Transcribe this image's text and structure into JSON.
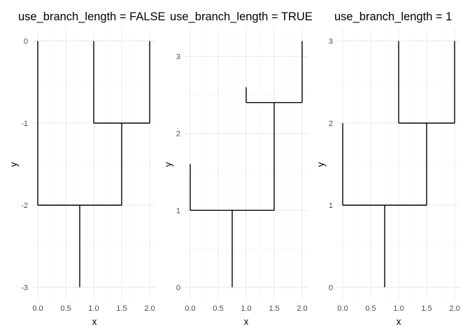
{
  "chart_data": [
    {
      "type": "dendrogram",
      "title": "use_branch_length = FALSE",
      "xlabel": "x",
      "ylabel": "y",
      "xlim": [
        -0.1,
        2.1
      ],
      "ylim": [
        -3.15,
        0.15
      ],
      "xticks": [
        0.0,
        0.5,
        1.0,
        1.5,
        2.0
      ],
      "xtick_labels": [
        "0.0",
        "0.5",
        "1.0",
        "1.5",
        "2.0"
      ],
      "yticks": [
        -3,
        -2,
        -1,
        0
      ],
      "ytick_labels": [
        "-3",
        "-2",
        "-1",
        "0"
      ],
      "grid": true,
      "segments": [
        {
          "x": [
            0.75,
            0.75
          ],
          "y": [
            -3,
            -2
          ]
        },
        {
          "x": [
            0.0,
            1.5
          ],
          "y": [
            -2,
            -2
          ]
        },
        {
          "x": [
            0.0,
            0.0
          ],
          "y": [
            -2,
            0
          ]
        },
        {
          "x": [
            1.5,
            1.5
          ],
          "y": [
            -2,
            -1
          ]
        },
        {
          "x": [
            1.0,
            2.0
          ],
          "y": [
            -1,
            -1
          ]
        },
        {
          "x": [
            1.0,
            1.0
          ],
          "y": [
            -1,
            0
          ]
        },
        {
          "x": [
            2.0,
            2.0
          ],
          "y": [
            -1,
            0
          ]
        }
      ]
    },
    {
      "type": "dendrogram",
      "title": "use_branch_length = TRUE",
      "xlabel": "x",
      "ylabel": "y",
      "xlim": [
        -0.1,
        2.1
      ],
      "ylim": [
        -0.16,
        3.36
      ],
      "xticks": [
        0.0,
        0.5,
        1.0,
        1.5,
        2.0
      ],
      "xtick_labels": [
        "0.0",
        "0.5",
        "1.0",
        "1.5",
        "2.0"
      ],
      "yticks": [
        0,
        1,
        2,
        3
      ],
      "ytick_labels": [
        "0",
        "1",
        "2",
        "3"
      ],
      "grid": true,
      "segments": [
        {
          "x": [
            0.75,
            0.75
          ],
          "y": [
            0,
            1
          ]
        },
        {
          "x": [
            0.0,
            1.5
          ],
          "y": [
            1,
            1
          ]
        },
        {
          "x": [
            0.0,
            0.0
          ],
          "y": [
            1,
            1.6
          ]
        },
        {
          "x": [
            1.5,
            1.5
          ],
          "y": [
            1,
            2.4
          ]
        },
        {
          "x": [
            1.0,
            2.0
          ],
          "y": [
            2.4,
            2.4
          ]
        },
        {
          "x": [
            1.0,
            1.0
          ],
          "y": [
            2.4,
            2.6
          ]
        },
        {
          "x": [
            2.0,
            2.0
          ],
          "y": [
            2.4,
            3.2
          ]
        }
      ]
    },
    {
      "type": "dendrogram",
      "title": "use_branch_length = 1",
      "xlabel": "x",
      "ylabel": "y",
      "xlim": [
        -0.1,
        2.1
      ],
      "ylim": [
        -0.15,
        3.15
      ],
      "xticks": [
        0.0,
        0.5,
        1.0,
        1.5,
        2.0
      ],
      "xtick_labels": [
        "0.0",
        "0.5",
        "1.0",
        "1.5",
        "2.0"
      ],
      "yticks": [
        0,
        1,
        2,
        3
      ],
      "ytick_labels": [
        "0",
        "1",
        "2",
        "3"
      ],
      "grid": true,
      "segments": [
        {
          "x": [
            0.75,
            0.75
          ],
          "y": [
            0,
            1
          ]
        },
        {
          "x": [
            0.0,
            1.5
          ],
          "y": [
            1,
            1
          ]
        },
        {
          "x": [
            0.0,
            0.0
          ],
          "y": [
            1,
            2
          ]
        },
        {
          "x": [
            1.5,
            1.5
          ],
          "y": [
            1,
            2
          ]
        },
        {
          "x": [
            1.0,
            2.0
          ],
          "y": [
            2,
            2
          ]
        },
        {
          "x": [
            1.0,
            1.0
          ],
          "y": [
            2,
            3
          ]
        },
        {
          "x": [
            2.0,
            2.0
          ],
          "y": [
            2,
            3
          ]
        }
      ]
    }
  ]
}
